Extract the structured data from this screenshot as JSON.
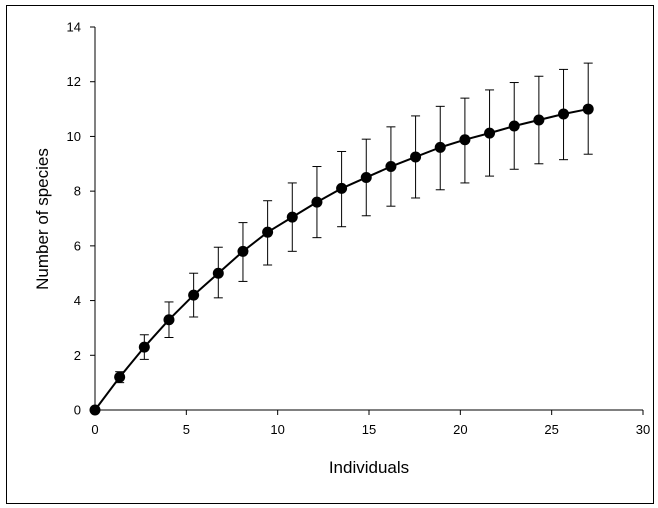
{
  "chart_data": {
    "type": "line",
    "title": "",
    "xlabel": "Individuals",
    "ylabel": "Number of species",
    "xlim": [
      0,
      30
    ],
    "ylim": [
      0,
      14
    ],
    "xticks": [
      "0",
      "5",
      "10",
      "15",
      "20",
      "25",
      "30"
    ],
    "yticks": [
      "0",
      "2",
      "4",
      "6",
      "8",
      "10",
      "12",
      "14"
    ],
    "grid": false,
    "legend": "none",
    "colors": {
      "line": "#000000",
      "marker": "#000000",
      "error_bar": "#000000"
    },
    "series": [
      {
        "x": [
          0,
          1.35,
          2.7,
          4.05,
          5.4,
          6.75,
          8.1,
          9.45,
          10.8,
          12.15,
          13.5,
          14.85,
          16.2,
          17.55,
          18.9,
          20.25,
          21.6,
          22.95,
          24.3,
          25.65,
          27.0
        ],
        "y": [
          0,
          1.2,
          2.3,
          3.3,
          4.2,
          5.0,
          5.8,
          6.5,
          7.05,
          7.6,
          8.1,
          8.5,
          8.9,
          9.25,
          9.6,
          9.88,
          10.12,
          10.38,
          10.6,
          10.82,
          11.0
        ],
        "err_low": [
          0,
          1.0,
          1.85,
          2.65,
          3.4,
          4.1,
          4.7,
          5.3,
          5.8,
          6.3,
          6.7,
          7.1,
          7.45,
          7.75,
          8.05,
          8.3,
          8.55,
          8.8,
          9.0,
          9.15,
          9.35
        ],
        "err_high": [
          0,
          1.4,
          2.75,
          3.95,
          5.0,
          5.95,
          6.85,
          7.65,
          8.3,
          8.9,
          9.45,
          9.9,
          10.35,
          10.75,
          11.1,
          11.4,
          11.7,
          11.97,
          12.2,
          12.45,
          12.68
        ]
      }
    ]
  }
}
